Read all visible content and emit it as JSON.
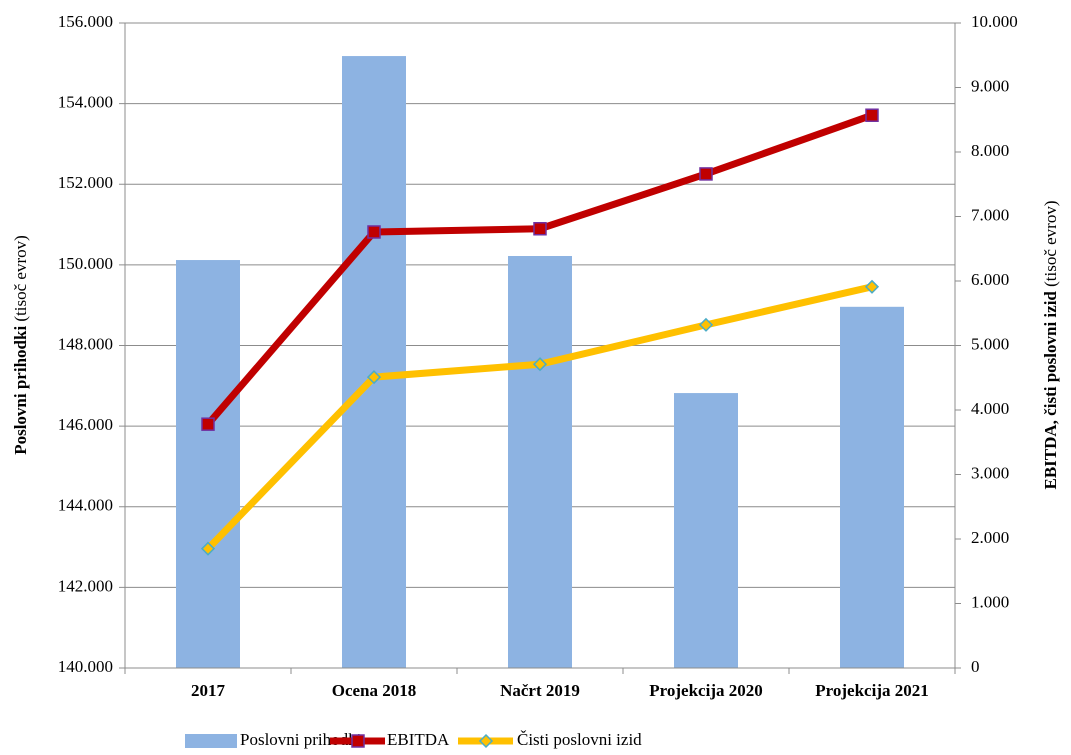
{
  "chart_data": {
    "type": "bar_line",
    "categories": [
      "2017",
      "Ocena 2018",
      "Načrt 2019",
      "Projekcija 2020",
      "Projekcija 2021"
    ],
    "series": [
      {
        "name": "Poslovni prihodki",
        "color": "#8db3e2",
        "type": "bar",
        "axis": "y",
        "values": [
          150120,
          155180,
          150220,
          146820,
          148960
        ]
      },
      {
        "name": "EBITDA",
        "color": "#c00000",
        "type": "line",
        "axis": "y2",
        "values": [
          3780,
          6760,
          6810,
          7660,
          8570
        ]
      },
      {
        "name": "Čisti poslovni izid",
        "color": "#ffc000",
        "type": "line",
        "axis": "y2",
        "values": [
          1850,
          4510,
          4710,
          5320,
          5910
        ]
      }
    ],
    "ylabel": "Poslovni prihodki",
    "ylabel_unit": "(tisoč evrov)",
    "y2label": "EBITDA, čisti poslovni izid",
    "y2label_unit": "(tisoč evrov)",
    "ylim": [
      140000,
      156000
    ],
    "yticks": [
      {
        "value": 140000,
        "label": "140.000"
      },
      {
        "value": 142000,
        "label": "142.000"
      },
      {
        "value": 144000,
        "label": "144.000"
      },
      {
        "value": 146000,
        "label": "146.000"
      },
      {
        "value": 148000,
        "label": "148.000"
      },
      {
        "value": 150000,
        "label": "150.000"
      },
      {
        "value": 152000,
        "label": "152.000"
      },
      {
        "value": 154000,
        "label": "154.000"
      },
      {
        "value": 156000,
        "label": "156.000"
      }
    ],
    "y2lim": [
      0,
      10000
    ],
    "y2ticks": [
      0,
      {
        "value": 1000,
        "label": "1.000"
      },
      {
        "value": 2000,
        "label": "2.000"
      },
      {
        "value": 3000,
        "label": "3.000"
      },
      {
        "value": 4000,
        "label": "4.000"
      },
      {
        "value": 5000,
        "label": "5.000"
      },
      {
        "value": 6000,
        "label": "6.000"
      },
      {
        "value": 7000,
        "label": "7.000"
      },
      {
        "value": 8000,
        "label": "8.000"
      },
      {
        "value": 9000,
        "label": "9.000"
      },
      {
        "value": 10000,
        "label": "10.000"
      }
    ],
    "grid": true,
    "legend": "bottom"
  }
}
